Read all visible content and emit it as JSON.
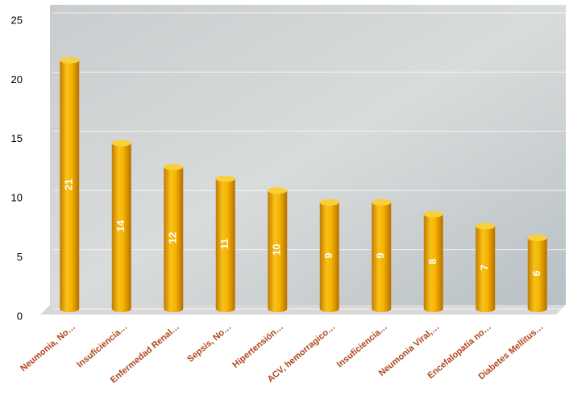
{
  "chart_data": {
    "type": "bar",
    "categories": [
      "Neumonia, No…",
      "Insuficiencia…",
      "Enfermedad Renal…",
      "Sepsis, No…",
      "Hipertensión…",
      "ACV, hemorragico…",
      "Insuficiencia…",
      "Neumonia Viral,…",
      "Encefalopatia no…",
      "Diabetes Mellitus…"
    ],
    "values": [
      21,
      14,
      12,
      11,
      10,
      9,
      9,
      8,
      7,
      6
    ],
    "color": "#f5b400",
    "ylim": [
      0,
      25
    ],
    "yticks": [
      0,
      5,
      10,
      15,
      20,
      25
    ],
    "grid": true
  }
}
